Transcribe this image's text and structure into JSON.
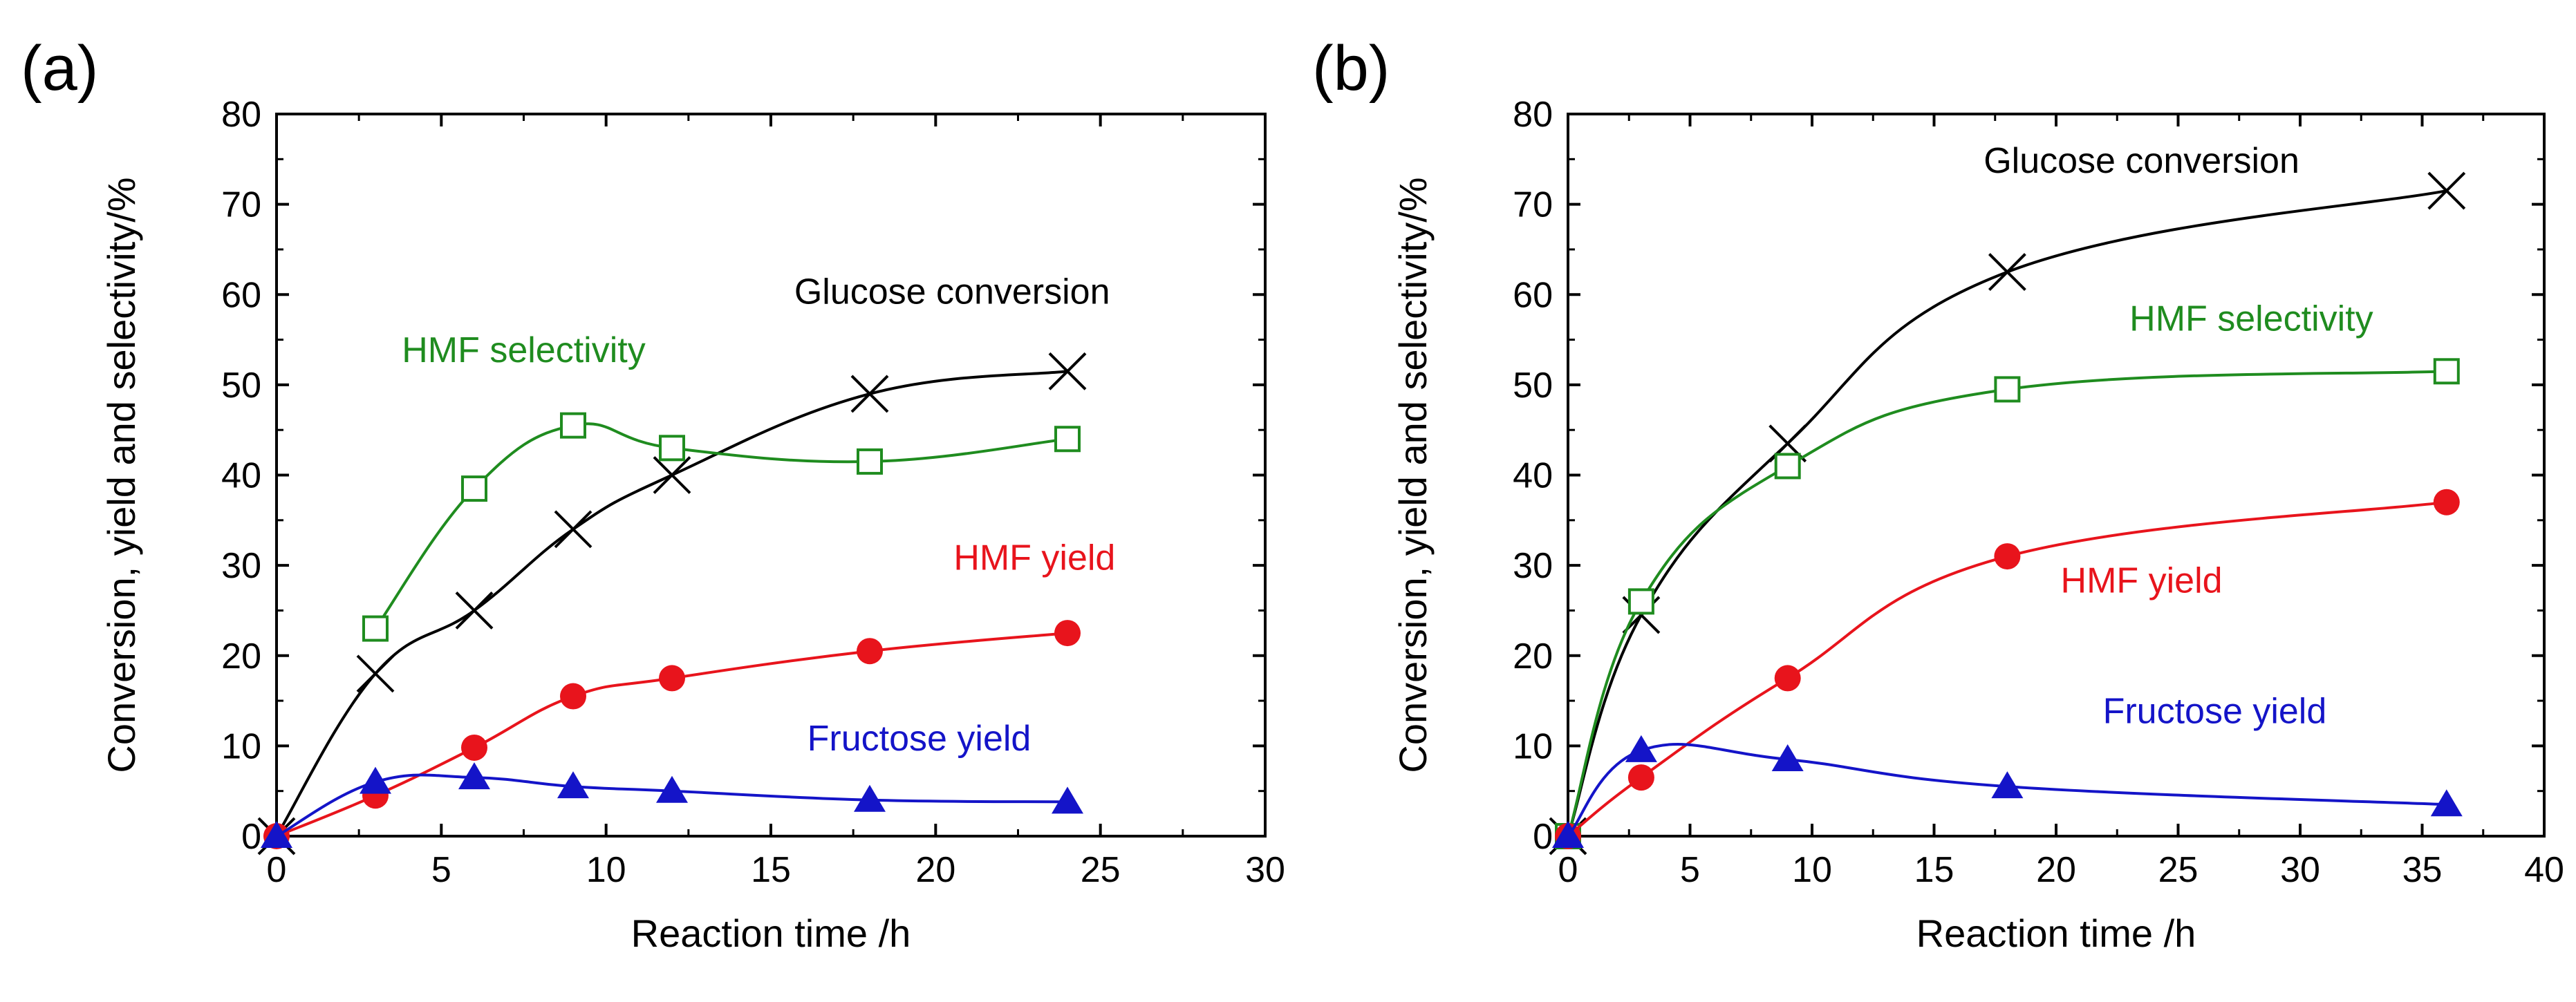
{
  "chart_data": [
    {
      "type": "line",
      "panel_label": "(a)",
      "xlabel": "Reaction time /h",
      "ylabel": "Conversion, yield and selectivity/%",
      "xlim": [
        0,
        30
      ],
      "ylim": [
        0,
        80
      ],
      "xticks": [
        0,
        5,
        10,
        15,
        20,
        25,
        30
      ],
      "yticks": [
        0,
        10,
        20,
        30,
        40,
        50,
        60,
        70,
        80
      ],
      "series": [
        {
          "name": "Glucose conversion",
          "color": "#000000",
          "marker": "cross",
          "x": [
            0,
            3,
            6,
            9,
            12,
            18,
            24
          ],
          "y": [
            0,
            18,
            25,
            34,
            40,
            49,
            51.5
          ],
          "label_anchor": [
            20.5,
            59
          ]
        },
        {
          "name": "HMF selectivity",
          "color": "#1f8c1f",
          "marker": "open-square",
          "x": [
            3,
            6,
            9,
            12,
            18,
            24
          ],
          "y": [
            23,
            38.5,
            45.5,
            43,
            41.5,
            44
          ],
          "label_anchor": [
            7.5,
            52.5
          ]
        },
        {
          "name": "HMF yield",
          "color": "#e8141c",
          "marker": "filled-circle",
          "x": [
            0,
            3,
            6,
            9,
            12,
            18,
            24
          ],
          "y": [
            0,
            4.5,
            9.8,
            15.5,
            17.5,
            20.5,
            22.5
          ],
          "label_anchor": [
            23,
            29.5
          ]
        },
        {
          "name": "Fructose yield",
          "color": "#1414c8",
          "marker": "filled-triangle",
          "x": [
            0,
            3,
            6,
            9,
            12,
            18,
            24
          ],
          "y": [
            0,
            6,
            6.5,
            5.5,
            5,
            4,
            3.8
          ],
          "label_anchor": [
            19.5,
            9.5
          ]
        }
      ]
    },
    {
      "type": "line",
      "panel_label": "(b)",
      "xlabel": "Reaction time /h",
      "ylabel": "Conversion, yield and selectivity/%",
      "xlim": [
        0,
        40
      ],
      "ylim": [
        0,
        80
      ],
      "xticks": [
        0,
        5,
        10,
        15,
        20,
        25,
        30,
        35,
        40
      ],
      "yticks": [
        0,
        10,
        20,
        30,
        40,
        50,
        60,
        70,
        80
      ],
      "series": [
        {
          "name": "Glucose conversion",
          "color": "#000000",
          "marker": "cross",
          "x": [
            0,
            3,
            9,
            18,
            36
          ],
          "y": [
            0,
            24.5,
            43.5,
            62.5,
            71.5
          ],
          "label_anchor": [
            23.5,
            73.5
          ]
        },
        {
          "name": "HMF selectivity",
          "color": "#1f8c1f",
          "marker": "open-square",
          "x": [
            0,
            3,
            9,
            18,
            36
          ],
          "y": [
            0,
            26,
            41,
            49.5,
            51.5
          ],
          "label_anchor": [
            28,
            56
          ]
        },
        {
          "name": "HMF yield",
          "color": "#e8141c",
          "marker": "filled-circle",
          "x": [
            0,
            3,
            9,
            18,
            36
          ],
          "y": [
            0,
            6.5,
            17.5,
            31,
            37
          ],
          "label_anchor": [
            23.5,
            27
          ]
        },
        {
          "name": "Fructose yield",
          "color": "#1414c8",
          "marker": "filled-triangle",
          "x": [
            0,
            3,
            9,
            18,
            36
          ],
          "y": [
            0,
            9.5,
            8.5,
            5.5,
            3.5
          ],
          "label_anchor": [
            26.5,
            12.5
          ]
        }
      ]
    }
  ]
}
